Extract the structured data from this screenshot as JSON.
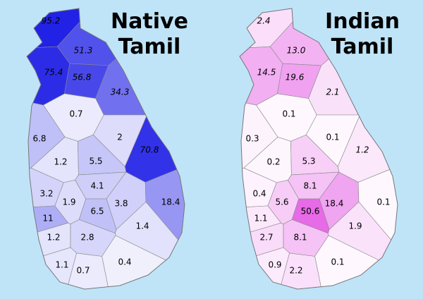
{
  "maps": [
    {
      "title": [
        "Native",
        "Tamil"
      ],
      "color": "#2222e6",
      "values": [
        95.2,
        51.3,
        75.4,
        56.8,
        34.3,
        0.7,
        6.8,
        2.0,
        70.8,
        1.2,
        5.5,
        4.1,
        3.2,
        1.9,
        3.8,
        18.4,
        6.5,
        11.0,
        1.4,
        1.2,
        2.8,
        0.4,
        1.1,
        0.7
      ]
    },
    {
      "title": [
        "Indian",
        "Tamil"
      ],
      "color": "#e040e0",
      "values": [
        2.4,
        {
          "value": 13,
          "label": "13.0"
        },
        14.5,
        19.6,
        2.1,
        0.1,
        0.3,
        0.1,
        1.2,
        0.2,
        5.3,
        8.1,
        0.4,
        5.6,
        18.4,
        0.1,
        50.6,
        1.1,
        1.9,
        2.7,
        8.1,
        0.1,
        0.9,
        2.2
      ]
    }
  ]
}
